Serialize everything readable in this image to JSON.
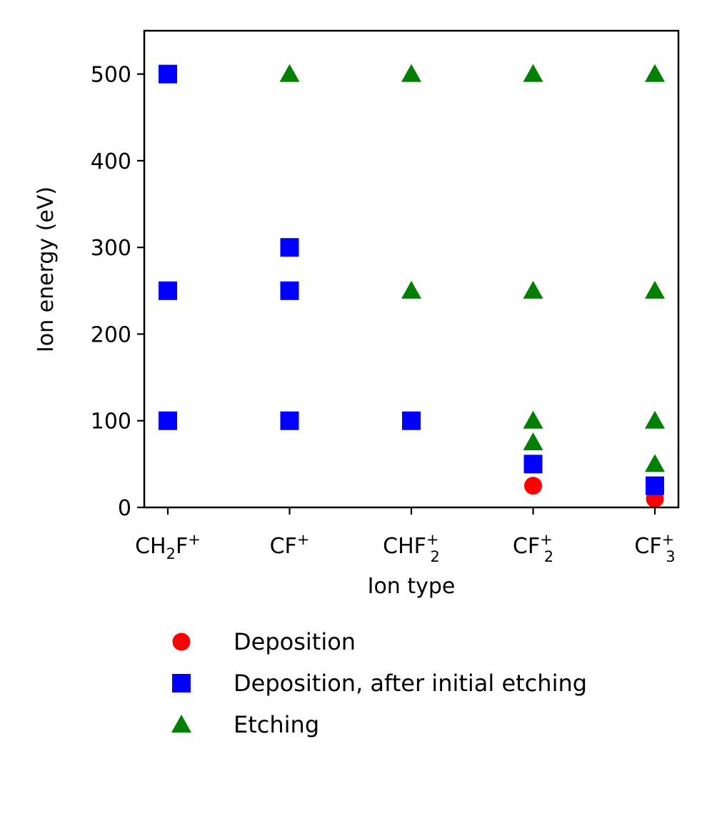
{
  "chart_data": {
    "type": "scatter",
    "xlabel": "Ion type",
    "ylabel": "Ion energy (eV)",
    "ylim": [
      0,
      550
    ],
    "yticks": [
      0,
      100,
      200,
      300,
      400,
      500
    ],
    "grid": false,
    "legend_position": "below",
    "categories": [
      {
        "base": "CH",
        "sub1": "2",
        "mid": "F",
        "sup": "+",
        "sub2": ""
      },
      {
        "base": "CF",
        "sub1": "",
        "mid": "",
        "sup": "+",
        "sub2": ""
      },
      {
        "base": "CHF",
        "sub1": "",
        "mid": "",
        "sup": "+",
        "sub2": "2"
      },
      {
        "base": "CF",
        "sub1": "",
        "mid": "",
        "sup": "+",
        "sub2": "2"
      },
      {
        "base": "CF",
        "sub1": "",
        "mid": "",
        "sup": "+",
        "sub2": "3"
      }
    ],
    "series": [
      {
        "name": "Deposition",
        "marker": "circle",
        "color": "#ff0000",
        "points": [
          {
            "x": 3,
            "y": 25
          },
          {
            "x": 4,
            "y": 10
          }
        ]
      },
      {
        "name": "Deposition, after initial etching",
        "marker": "square",
        "color": "#0000ff",
        "points": [
          {
            "x": 0,
            "y": 500
          },
          {
            "x": 0,
            "y": 250
          },
          {
            "x": 0,
            "y": 100
          },
          {
            "x": 1,
            "y": 300
          },
          {
            "x": 1,
            "y": 250
          },
          {
            "x": 1,
            "y": 100
          },
          {
            "x": 2,
            "y": 100
          },
          {
            "x": 3,
            "y": 50
          },
          {
            "x": 4,
            "y": 25
          }
        ]
      },
      {
        "name": "Etching",
        "marker": "triangle",
        "color": "#008000",
        "points": [
          {
            "x": 1,
            "y": 500
          },
          {
            "x": 2,
            "y": 500
          },
          {
            "x": 3,
            "y": 500
          },
          {
            "x": 4,
            "y": 500
          },
          {
            "x": 2,
            "y": 250
          },
          {
            "x": 3,
            "y": 250
          },
          {
            "x": 4,
            "y": 250
          },
          {
            "x": 3,
            "y": 100
          },
          {
            "x": 3,
            "y": 75
          },
          {
            "x": 4,
            "y": 100
          },
          {
            "x": 4,
            "y": 50
          }
        ]
      }
    ]
  }
}
